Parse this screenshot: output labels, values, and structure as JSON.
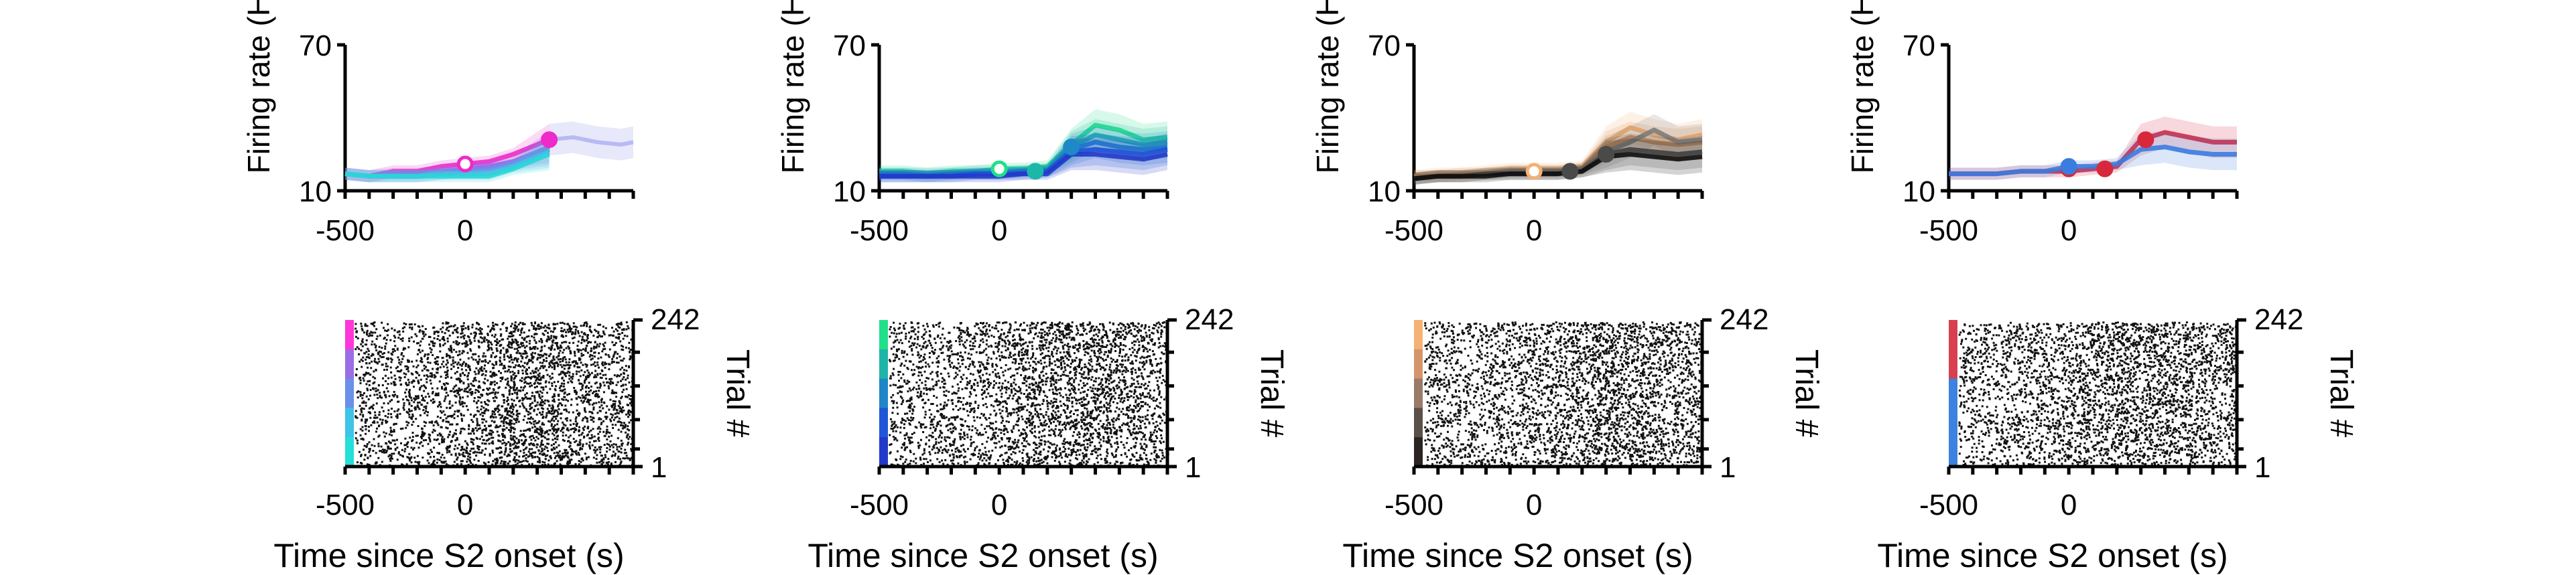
{
  "figure": {
    "panels": [
      {
        "top": {
          "ylabel": "Firing rate (Hz)",
          "y_ticks": [
            "70",
            "10"
          ],
          "x_ticks": [
            "-500",
            "0"
          ],
          "ylim": [
            10,
            70
          ],
          "xlim": [
            -500,
            700
          ],
          "series": [
            {
              "color": "#ee2ac8",
              "x": [
                -500,
                -400,
                -300,
                -200,
                -100,
                0,
                100,
                200,
                350
              ],
              "y": [
                17,
                16,
                18,
                18,
                20,
                21,
                22,
                25,
                31
              ]
            },
            {
              "color": "#a062e6",
              "x": [
                -500,
                -400,
                -300,
                -200,
                -100,
                0,
                100,
                200,
                350
              ],
              "y": [
                17,
                16,
                17,
                17,
                18,
                19,
                20,
                22,
                28
              ]
            },
            {
              "color": "#6f86ec",
              "x": [
                -500,
                -400,
                -300,
                -200,
                -100,
                0,
                100,
                200,
                350
              ],
              "y": [
                17,
                16,
                16,
                16,
                17,
                18,
                19,
                21,
                27
              ]
            },
            {
              "color": "#4fb8e8",
              "x": [
                -500,
                -400,
                -300,
                -200,
                -100,
                0,
                100,
                200,
                350
              ],
              "y": [
                17,
                16,
                16,
                16,
                17,
                17,
                17,
                20,
                26
              ]
            },
            {
              "color": "#29d6d6",
              "x": [
                -500,
                -400,
                -300,
                -200,
                -100,
                0,
                100,
                200,
                350
              ],
              "y": [
                17,
                16,
                16,
                16,
                16,
                16,
                16,
                19,
                25
              ]
            }
          ],
          "faded": [
            {
              "color": "#7d82e8",
              "x": [
                350,
                450,
                550,
                650,
                700
              ],
              "y": [
                31,
                32,
                30,
                29,
                30
              ]
            }
          ],
          "markers": [
            {
              "x": 0,
              "y": 21,
              "color": "#ee2ac8",
              "open": true
            },
            {
              "x": 350,
              "y": 31,
              "color": "#ee2ac8",
              "open": false
            }
          ]
        },
        "raster": {
          "ylabel": "Trial #",
          "y_ticks": [
            "242",
            "1"
          ],
          "x_ticks": [
            "-500",
            "0"
          ],
          "xlabel": "Time since S2 onset (s)",
          "colorbar": [
            "#ff36d8",
            "#9b6ee6",
            "#6c90e8",
            "#3fc3e6",
            "#24e0d8"
          ],
          "burst_x": 280,
          "seed": 11
        }
      },
      {
        "top": {
          "ylabel": "Firing rate (Hz)",
          "y_ticks": [
            "70",
            "10"
          ],
          "x_ticks": [
            "-500",
            "0"
          ],
          "ylim": [
            10,
            70
          ],
          "xlim": [
            -500,
            700
          ],
          "series": [
            {
              "color": "#1fe08a",
              "x": [
                -500,
                -400,
                -300,
                -200,
                -100,
                0,
                100,
                200,
                300,
                400,
                500,
                600,
                700
              ],
              "y": [
                18,
                18,
                17,
                18,
                18,
                19,
                19,
                20,
                29,
                37,
                35,
                31,
                32
              ]
            },
            {
              "color": "#1db7a8",
              "x": [
                -500,
                -400,
                -300,
                -200,
                -100,
                0,
                100,
                200,
                300,
                400,
                500,
                600,
                700
              ],
              "y": [
                17,
                17,
                17,
                17,
                18,
                18,
                18,
                19,
                28,
                33,
                31,
                29,
                30
              ]
            },
            {
              "color": "#1e88c8",
              "x": [
                -500,
                -400,
                -300,
                -200,
                -100,
                0,
                100,
                200,
                300,
                400,
                500,
                600,
                700
              ],
              "y": [
                17,
                17,
                16,
                17,
                17,
                17,
                18,
                18,
                27,
                30,
                28,
                27,
                28
              ]
            },
            {
              "color": "#1e55d8",
              "x": [
                -500,
                -400,
                -300,
                -200,
                -100,
                0,
                100,
                200,
                300,
                400,
                500,
                600,
                700
              ],
              "y": [
                16,
                16,
                16,
                16,
                17,
                17,
                17,
                18,
                26,
                27,
                26,
                25,
                27
              ]
            },
            {
              "color": "#2238c8",
              "x": [
                -500,
                -400,
                -300,
                -200,
                -100,
                0,
                100,
                200,
                300,
                400,
                500,
                600,
                700
              ],
              "y": [
                16,
                16,
                16,
                16,
                16,
                16,
                17,
                17,
                25,
                25,
                24,
                23,
                25
              ]
            }
          ],
          "faded": [],
          "markers": [
            {
              "x": 0,
              "y": 19,
              "color": "#1fe08a",
              "open": true
            },
            {
              "x": 150,
              "y": 18,
              "color": "#1db7a8",
              "open": false
            },
            {
              "x": 300,
              "y": 28,
              "color": "#1e88c8",
              "open": false
            }
          ]
        },
        "raster": {
          "ylabel": "Trial #",
          "y_ticks": [
            "242",
            "1"
          ],
          "x_ticks": [
            "-500",
            "0"
          ],
          "xlabel": "Time since S2 onset (s)",
          "colorbar": [
            "#22e08a",
            "#1fb4a8",
            "#1f86c8",
            "#1f55d8",
            "#2238c8"
          ],
          "burst_x": 350,
          "seed": 23
        }
      },
      {
        "top": {
          "ylabel": "Firing rate (Hz)",
          "y_ticks": [
            "70",
            "10"
          ],
          "x_ticks": [
            "-500",
            "0"
          ],
          "ylim": [
            10,
            70
          ],
          "xlim": [
            -500,
            700
          ],
          "series": [
            {
              "color": "#f4b072",
              "x": [
                -500,
                -400,
                -300,
                -200,
                -100,
                0,
                100,
                200,
                300,
                400,
                500,
                600,
                700
              ],
              "y": [
                16,
                17,
                17,
                18,
                19,
                19,
                19,
                20,
                30,
                36,
                33,
                31,
                33
              ]
            },
            {
              "color": "#d89058",
              "x": [
                -500,
                -400,
                -300,
                -200,
                -100,
                0,
                100,
                200,
                300,
                400,
                500,
                600,
                700
              ],
              "y": [
                16,
                16,
                17,
                17,
                18,
                18,
                18,
                19,
                28,
                32,
                30,
                29,
                30
              ]
            },
            {
              "color": "#7d7d7d",
              "x": [
                -500,
                -400,
                -300,
                -200,
                -100,
                0,
                100,
                200,
                300,
                400,
                500,
                600,
                700
              ],
              "y": [
                15,
                16,
                16,
                17,
                18,
                18,
                18,
                19,
                26,
                30,
                35,
                30,
                31
              ]
            },
            {
              "color": "#4a4a4a",
              "x": [
                -500,
                -400,
                -300,
                -200,
                -100,
                0,
                100,
                200,
                300,
                400,
                500,
                600,
                700
              ],
              "y": [
                15,
                16,
                16,
                17,
                17,
                17,
                17,
                18,
                25,
                27,
                26,
                25,
                26
              ]
            },
            {
              "color": "#101010",
              "x": [
                -500,
                -400,
                -300,
                -200,
                -100,
                0,
                100,
                200,
                300,
                400,
                500,
                600,
                700
              ],
              "y": [
                15,
                16,
                16,
                16,
                17,
                17,
                17,
                18,
                24,
                25,
                24,
                23,
                24
              ]
            }
          ],
          "faded": [],
          "markers": [
            {
              "x": 0,
              "y": 18,
              "color": "#f4b072",
              "open": true
            },
            {
              "x": 150,
              "y": 18,
              "color": "#4a4a4a",
              "open": false
            },
            {
              "x": 300,
              "y": 25,
              "color": "#4a4a4a",
              "open": false
            }
          ]
        },
        "raster": {
          "ylabel": "Trial #",
          "y_ticks": [
            "242",
            "1"
          ],
          "x_ticks": [
            "-500",
            "0"
          ],
          "xlabel": "Time since S2 onset (s)",
          "colorbar": [
            "#f6b274",
            "#d4956a",
            "#9a7a68",
            "#5b5048",
            "#2a2522"
          ],
          "burst_x": 330,
          "seed": 37
        }
      },
      {
        "top": {
          "ylabel": "Firing rate (Hz)",
          "y_ticks": [
            "70",
            "10"
          ],
          "x_ticks": [
            "-500",
            "0"
          ],
          "ylim": [
            10,
            70
          ],
          "xlim": [
            -500,
            700
          ],
          "series": [
            {
              "color": "#d8283c",
              "x": [
                -500,
                -400,
                -300,
                -200,
                -100,
                0,
                100,
                200,
                300,
                400,
                500,
                600,
                700
              ],
              "y": [
                17,
                17,
                17,
                18,
                18,
                18,
                19,
                20,
                31,
                34,
                32,
                30,
                30
              ]
            },
            {
              "color": "#3a7ce0",
              "x": [
                -500,
                -400,
                -300,
                -200,
                -100,
                0,
                100,
                200,
                300,
                400,
                500,
                600,
                700
              ],
              "y": [
                17,
                17,
                17,
                18,
                18,
                20,
                20,
                21,
                27,
                28,
                26,
                25,
                25
              ]
            }
          ],
          "faded": [],
          "markers": [
            {
              "x": 0,
              "y": 19,
              "color": "#d8283c",
              "open": true
            },
            {
              "x": 150,
              "y": 19,
              "color": "#d8283c",
              "open": false
            },
            {
              "x": 320,
              "y": 31,
              "color": "#d8283c",
              "open": false
            },
            {
              "x": 0,
              "y": 20,
              "color": "#3a7ce0",
              "open": false
            }
          ]
        },
        "raster": {
          "ylabel": "Trial #",
          "y_ticks": [
            "242",
            "1"
          ],
          "x_ticks": [
            "-500",
            "0"
          ],
          "xlabel": "Time since S2 onset (s)",
          "colorbar": [
            "#d8404f",
            "#d8404f",
            "#3d82de",
            "#3d82de",
            "#3d82de"
          ],
          "burst_x": 320,
          "seed": 53
        }
      }
    ]
  },
  "chart_data": [
    {
      "type": "line",
      "title": "",
      "ylabel": "Firing rate (Hz)",
      "xlabel": "",
      "ylim": [
        10,
        70
      ],
      "series": [
        {
          "values": [
            17,
            16,
            18,
            18,
            20,
            21,
            22,
            25,
            31
          ]
        },
        {
          "values": [
            17,
            16,
            16,
            16,
            16,
            16,
            16,
            19,
            25
          ]
        }
      ]
    },
    {
      "type": "line",
      "title": "",
      "ylabel": "Firing rate (Hz)",
      "xlabel": "",
      "ylim": [
        10,
        70
      ],
      "series": [
        {
          "values": [
            18,
            18,
            17,
            18,
            18,
            19,
            19,
            20,
            29,
            37,
            35,
            31,
            32
          ]
        },
        {
          "values": [
            16,
            16,
            16,
            16,
            16,
            16,
            17,
            17,
            25,
            25,
            24,
            23,
            25
          ]
        }
      ]
    },
    {
      "type": "line",
      "title": "",
      "ylabel": "Firing rate (Hz)",
      "xlabel": "",
      "ylim": [
        10,
        70
      ],
      "series": [
        {
          "values": [
            16,
            17,
            17,
            18,
            19,
            19,
            19,
            20,
            30,
            36,
            33,
            31,
            33
          ]
        },
        {
          "values": [
            15,
            16,
            16,
            16,
            17,
            17,
            17,
            18,
            24,
            25,
            24,
            23,
            24
          ]
        }
      ]
    },
    {
      "type": "line",
      "title": "",
      "ylabel": "Firing rate (Hz)",
      "xlabel": "",
      "ylim": [
        10,
        70
      ],
      "series": [
        {
          "values": [
            17,
            17,
            17,
            18,
            18,
            18,
            19,
            20,
            31,
            34,
            32,
            30,
            30
          ]
        },
        {
          "values": [
            17,
            17,
            17,
            18,
            18,
            20,
            20,
            21,
            27,
            28,
            26,
            25,
            25
          ]
        }
      ]
    },
    {
      "type": "scatter",
      "title": "",
      "xlabel": "Time since S2 onset (s)",
      "ylabel": "Trial #",
      "ylim": [
        1,
        242
      ]
    }
  ]
}
